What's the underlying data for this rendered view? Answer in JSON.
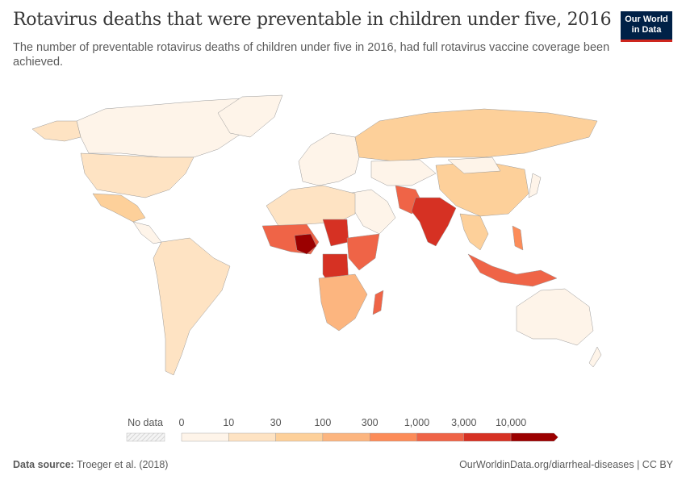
{
  "header": {
    "title": "Rotavirus deaths that were preventable in children under five, 2016",
    "subtitle": "The number of preventable rotavirus deaths of children under five in 2016, had full rotavirus vaccine coverage been achieved.",
    "logo_line1": "Our World",
    "logo_line2": "in Data"
  },
  "legend": {
    "no_data_label": "No data",
    "bins": [
      "0",
      "10",
      "30",
      "100",
      "300",
      "1,000",
      "3,000",
      "10,000"
    ],
    "colors": [
      "#fef4e9",
      "#fee3c3",
      "#fdd09a",
      "#fcb57f",
      "#fc8c59",
      "#ef6447",
      "#d63123",
      "#9b0000"
    ]
  },
  "footer": {
    "source_label": "Data source:",
    "source": "Troeger et al. (2018)",
    "url": "OurWorldinData.org/diarrheal-diseases | CC BY"
  }
}
